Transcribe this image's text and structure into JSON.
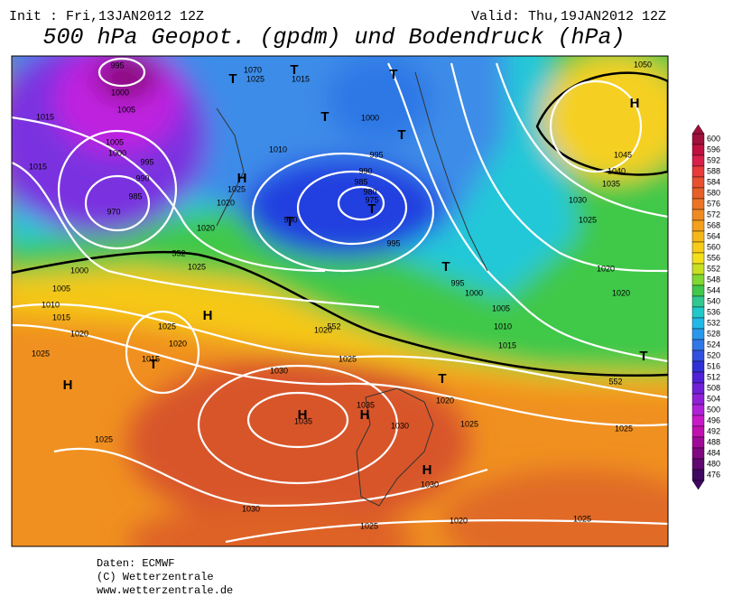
{
  "header": {
    "init": "Init : Fri,13JAN2012 12Z",
    "valid": "Valid: Thu,19JAN2012 12Z",
    "title": "500 hPa Geopot. (gpdm) und Bodendruck (hPa)"
  },
  "legend": {
    "ticks": [
      600,
      596,
      592,
      588,
      584,
      580,
      576,
      572,
      568,
      564,
      560,
      556,
      552,
      548,
      544,
      540,
      536,
      532,
      528,
      524,
      520,
      516,
      512,
      508,
      504,
      500,
      496,
      492,
      488,
      484,
      480,
      476
    ]
  },
  "map": {
    "labels": [
      "995",
      "1000",
      "1005",
      "1015",
      "1005",
      "1000",
      "995",
      "1015",
      "990",
      "985",
      "970",
      "1000",
      "1005",
      "1010",
      "1015",
      "1020",
      "1025",
      "1025",
      "1025",
      "1020",
      "1015",
      "1020",
      "1025",
      "1020",
      "1025",
      "1010",
      "1015",
      "1025",
      "1070",
      "990",
      "1000",
      "995",
      "990",
      "985",
      "980",
      "975",
      "995",
      "995",
      "1000",
      "1005",
      "1010",
      "1015",
      "1020",
      "1025",
      "1030",
      "1035",
      "1035",
      "1030",
      "1020",
      "1025",
      "1030",
      "1030",
      "1025",
      "1020",
      "1025",
      "1025",
      "1020",
      "1020",
      "1025",
      "1030",
      "1035",
      "1040",
      "1045",
      "1050",
      "T",
      "T",
      "T",
      "T",
      "T",
      "H",
      "T",
      "T",
      "T",
      "H",
      "T",
      "H",
      "T",
      "H",
      "H",
      "H",
      "H",
      "T",
      "552",
      "552",
      "552"
    ]
  },
  "footer": {
    "lines": [
      "Daten: ECMWF",
      "(C) Wetterzentrale",
      "www.wetterzentrale.de"
    ]
  }
}
